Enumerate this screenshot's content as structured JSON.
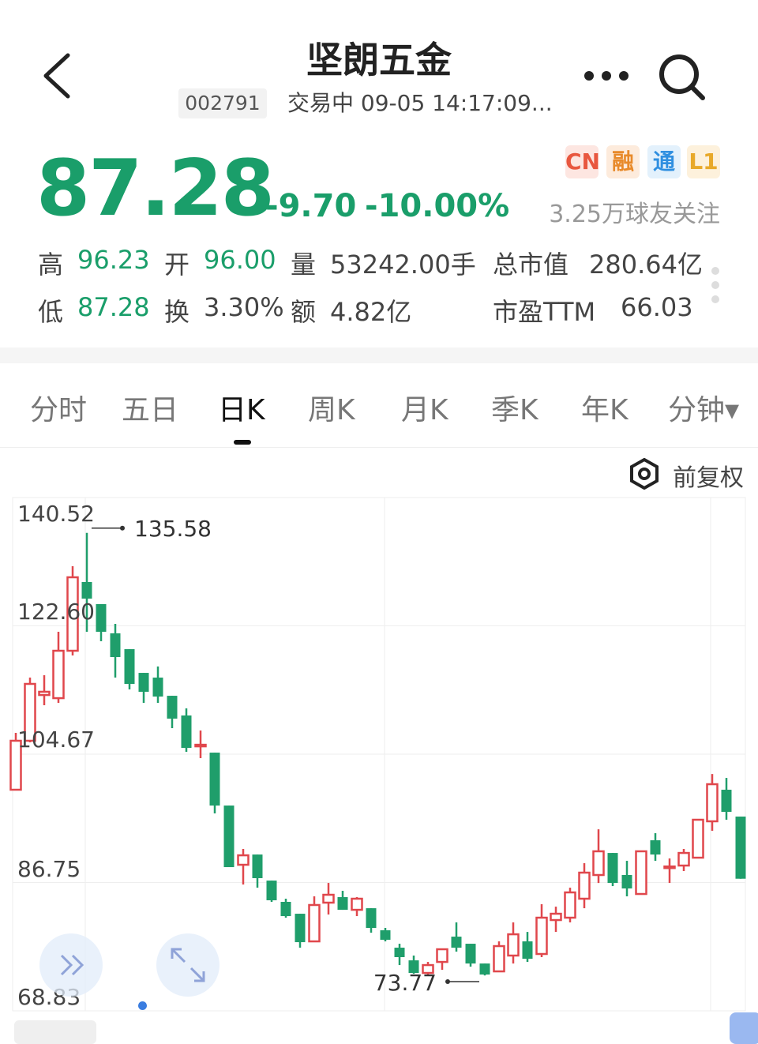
{
  "header": {
    "title": "坚朗五金",
    "code": "002791",
    "status": "交易中 09-05 14:17:09..."
  },
  "quote": {
    "price": "87.28",
    "change": "-9.70",
    "change_pct": "-10.00%",
    "badges": [
      {
        "label": "CN",
        "color": "#e8573f",
        "bg": "#fde6e1"
      },
      {
        "label": "融",
        "color": "#e88a2a",
        "bg": "#fdebdc"
      },
      {
        "label": "通",
        "color": "#2f8fe0",
        "bg": "#e3f1fc"
      },
      {
        "label": "L1",
        "color": "#e8a92a",
        "bg": "#fdf1dc"
      }
    ],
    "followers": "3.25万球友关注",
    "stats": [
      {
        "label": "高",
        "value": "96.23",
        "green": true
      },
      {
        "label": "开",
        "value": "96.00",
        "green": true
      },
      {
        "label": "量",
        "value": "53242.00手",
        "green": false
      },
      {
        "label": "总市值",
        "value": "280.64亿",
        "green": false
      },
      {
        "label": "低",
        "value": "87.28",
        "green": true
      },
      {
        "label": "换",
        "value": "3.30%",
        "green": false
      },
      {
        "label": "额",
        "value": "4.82亿",
        "green": false
      },
      {
        "label": "市盈TTM",
        "value": "66.03",
        "green": false
      }
    ]
  },
  "tabs": [
    {
      "label": "分时"
    },
    {
      "label": "五日"
    },
    {
      "label": "日K",
      "active": true
    },
    {
      "label": "周K"
    },
    {
      "label": "月K"
    },
    {
      "label": "季K"
    },
    {
      "label": "年K"
    },
    {
      "label": "分钟▾"
    }
  ],
  "adjust_label": "前复权",
  "colors": {
    "up": "#e0474c",
    "down": "#1f9e6b",
    "price": "#1a9e6a"
  },
  "chart_data": {
    "type": "candlestick",
    "y_ticks": [
      "140.52",
      "122.60",
      "104.67",
      "86.75",
      "68.83"
    ],
    "ylim": [
      68.83,
      140.52
    ],
    "max_label": "135.58",
    "min_label": "73.77",
    "candles": [
      [
        99.71,
        106.55,
        107.65,
        99.71
      ],
      [
        106.55,
        114.49,
        115.37,
        106.33
      ],
      [
        112.94,
        113.39,
        115.7,
        111.51
      ],
      [
        112.5,
        119.12,
        121.77,
        111.84
      ],
      [
        119.12,
        129.38,
        130.92,
        118.46
      ],
      [
        128.72,
        126.4,
        135.58,
        121.77
      ],
      [
        125.63,
        121.77,
        125.63,
        120.45
      ],
      [
        121.55,
        118.24,
        122.87,
        115.37
      ],
      [
        119.34,
        114.49,
        119.34,
        113.72
      ],
      [
        116.03,
        113.39,
        116.03,
        111.84
      ],
      [
        115.37,
        112.72,
        116.92,
        111.84
      ],
      [
        112.83,
        109.64,
        112.83,
        108.31
      ],
      [
        110.08,
        105.55,
        111.07,
        105.0
      ],
      [
        105.89,
        105.99,
        107.98,
        104.12
      ],
      [
        104.89,
        97.5,
        104.89,
        96.4
      ],
      [
        97.5,
        88.9,
        97.5,
        88.9
      ],
      [
        89.23,
        90.55,
        91.44,
        86.47
      ],
      [
        90.66,
        87.36,
        90.66,
        86.03
      ],
      [
        87.02,
        84.27,
        87.02,
        84.05
      ],
      [
        84.05,
        82.06,
        84.49,
        81.84
      ],
      [
        82.39,
        78.42,
        82.39,
        77.65
      ],
      [
        78.53,
        83.61,
        84.82,
        78.53
      ],
      [
        83.94,
        85.04,
        86.69,
        82.28
      ],
      [
        84.71,
        82.94,
        85.59,
        82.94
      ],
      [
        82.94,
        84.49,
        84.71,
        82.06
      ],
      [
        83.16,
        80.41,
        83.16,
        79.74
      ],
      [
        80.08,
        78.75,
        80.41,
        78.53
      ],
      [
        77.65,
        76.33,
        78.2,
        75.22
      ],
      [
        75.88,
        74.12,
        76.55,
        74.0
      ],
      [
        74.12,
        75.22,
        75.66,
        73.9
      ],
      [
        75.66,
        77.43,
        77.43,
        74.56
      ],
      [
        79.19,
        77.65,
        81.18,
        77.1
      ],
      [
        78.2,
        75.44,
        78.2,
        75.0
      ],
      [
        75.44,
        73.9,
        75.44,
        73.77
      ],
      [
        74.34,
        77.87,
        78.53,
        74.34
      ],
      [
        76.55,
        79.52,
        81.18,
        75.44
      ],
      [
        78.53,
        76.1,
        79.85,
        75.66
      ],
      [
        76.77,
        81.84,
        83.72,
        76.33
      ],
      [
        81.51,
        82.39,
        83.38,
        79.85
      ],
      [
        81.84,
        85.37,
        86.03,
        81.18
      ],
      [
        84.49,
        88.13,
        89.45,
        83.16
      ],
      [
        87.8,
        91.11,
        94.19,
        86.69
      ],
      [
        90.88,
        86.69,
        90.88,
        86.25
      ],
      [
        87.8,
        85.92,
        89.78,
        84.82
      ],
      [
        85.15,
        91.11,
        91.11,
        85.15
      ],
      [
        92.65,
        90.66,
        93.64,
        89.78
      ],
      [
        88.9,
        88.99,
        90.11,
        86.69
      ],
      [
        89.12,
        90.88,
        91.44,
        88.35
      ],
      [
        90.22,
        95.52,
        95.52,
        90.22
      ],
      [
        95.3,
        100.48,
        101.91,
        93.97
      ],
      [
        99.71,
        96.62,
        101.36,
        95.52
      ],
      [
        95.96,
        87.28,
        95.96,
        87.28
      ]
    ]
  }
}
